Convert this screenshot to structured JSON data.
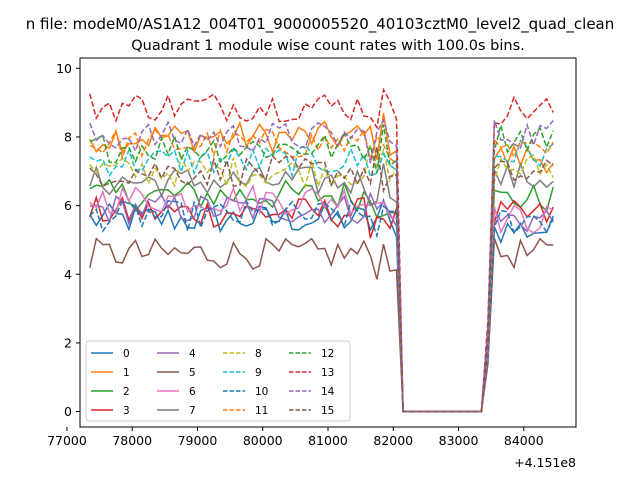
{
  "header": {
    "suptitle": "n file: modeM0/AS1A12_004T01_9000005520_40103cztM0_level2_quad_clean",
    "title": "Quadrant 1 module wise count rates with 100.0s bins."
  },
  "chart_data": {
    "type": "line",
    "title": "Quadrant 1 module wise count rates with 100.0s bins.",
    "xlabel": "",
    "ylabel": "",
    "x_offset_label": "+4.151e8",
    "xlim": [
      77200,
      84800
    ],
    "ylim": [
      -0.45,
      10.3
    ],
    "xticks": [
      77000,
      78000,
      79000,
      80000,
      81000,
      82000,
      83000,
      84000
    ],
    "yticks": [
      0,
      2,
      4,
      6,
      8,
      10
    ],
    "grid": false,
    "legend_position": "lower-left",
    "legend_columns": 4,
    "x_start": 77350,
    "x_step": 100,
    "gap_start": 82250,
    "gap_end": 83350,
    "series": [
      {
        "name": "0",
        "color": "#1f77b4",
        "dash": "solid",
        "low": 5.6,
        "tail": 5.3
      },
      {
        "name": "1",
        "color": "#ff7f0e",
        "dash": "solid",
        "low": 8.0,
        "tail": 7.4
      },
      {
        "name": "2",
        "color": "#2ca02c",
        "dash": "solid",
        "low": 6.3,
        "tail": 6.2
      },
      {
        "name": "3",
        "color": "#d62728",
        "dash": "solid",
        "low": 5.8,
        "tail": 5.7
      },
      {
        "name": "4",
        "color": "#9467bd",
        "dash": "solid",
        "low": 5.9,
        "tail": 5.6
      },
      {
        "name": "5",
        "color": "#8c564b",
        "dash": "solid",
        "low": 4.6,
        "tail": 4.6
      },
      {
        "name": "6",
        "color": "#e377c2",
        "dash": "solid",
        "low": 6.2,
        "tail": 5.6
      },
      {
        "name": "7",
        "color": "#7f7f7f",
        "dash": "solid",
        "low": 6.7,
        "tail": 6.8
      },
      {
        "name": "8",
        "color": "#bcbd22",
        "dash": "dashed",
        "low": 7.0,
        "tail": 7.1
      },
      {
        "name": "9",
        "color": "#17becf",
        "dash": "dashed",
        "low": 7.3,
        "tail": 7.5
      },
      {
        "name": "10",
        "color": "#1f77b4",
        "dash": "dashed",
        "low": 5.7,
        "tail": 5.6
      },
      {
        "name": "11",
        "color": "#ff7f0e",
        "dash": "dashed",
        "low": 7.8,
        "tail": 7.5
      },
      {
        "name": "12",
        "color": "#2ca02c",
        "dash": "dashed",
        "low": 7.7,
        "tail": 8.0
      },
      {
        "name": "13",
        "color": "#d62728",
        "dash": "dashed",
        "low": 8.9,
        "tail": 8.8
      },
      {
        "name": "14",
        "color": "#9467bd",
        "dash": "dashed",
        "low": 8.0,
        "tail": 8.1
      },
      {
        "name": "15",
        "color": "#8c564b",
        "dash": "dashed",
        "low": 7.0,
        "tail": 6.9
      }
    ]
  }
}
